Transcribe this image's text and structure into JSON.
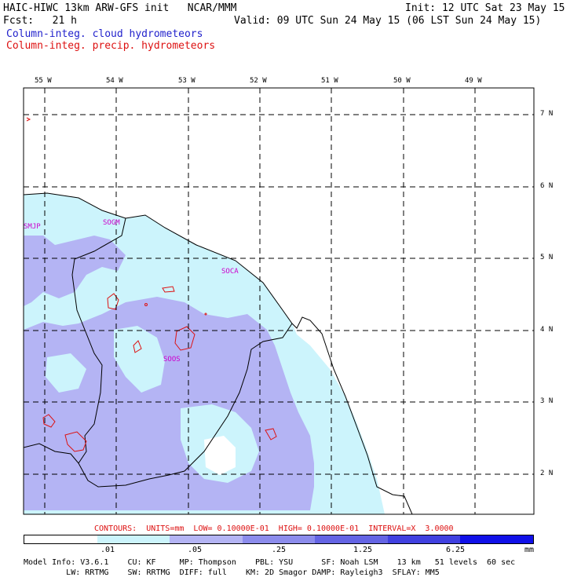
{
  "header": {
    "model_line": "HAIC-HIWC 13km ARW-GFS init   NCAR/MMM",
    "init_line": "Init: 12 UTC Sat 23 May 15",
    "fcst_line": "Fcst:   21 h",
    "valid_line": "Valid: 09 UTC Sun 24 May 15 (06 LST Sun 24 May 15)",
    "field_cloud": "Column-integ. cloud hydrometeors",
    "field_precip": "Column-integ. precip. hydrometeors"
  },
  "longitude_labels": [
    "55 W",
    "54 W",
    "53 W",
    "52 W",
    "51 W",
    "50 W",
    "49 W"
  ],
  "latitude_labels": [
    "7 N",
    "6 N",
    "5 N",
    "4 N",
    "3 N",
    "2 N"
  ],
  "stations": [
    "SMJP",
    "SOGM",
    "SOCA",
    "SOOS"
  ],
  "contour_text": "CONTOURS:  UNITS=mm  LOW= 0.10000E-01  HIGH= 0.10000E-01  INTERVAL=X  3.0000",
  "colorbar": {
    "colors": [
      "#ffffff",
      "#ccf4fc",
      "#b4b4f4",
      "#8c8cec",
      "#6464e4",
      "#4040e0",
      "#1010e8"
    ],
    "labels": [
      ".01",
      ".05",
      ".25",
      "1.25",
      "6.25",
      "mm"
    ]
  },
  "footer": {
    "line1": "Model Info: V3.6.1    CU: KF     MP: Thompson    PBL: YSU      SF: Noah LSM    13 km   51 levels  60 sec",
    "line2": "         LW: RRTMG    SW: RRTMG  DIFF: full    KM: 2D Smagor DAMP: Rayleigh3  SFLAY: MM5"
  },
  "map": {
    "cloud_fill_color": "#ccf4fc",
    "precip_fill_color": "#b4b4f4",
    "contour_color": "#dd1111",
    "station_color": "#cc00cc"
  }
}
